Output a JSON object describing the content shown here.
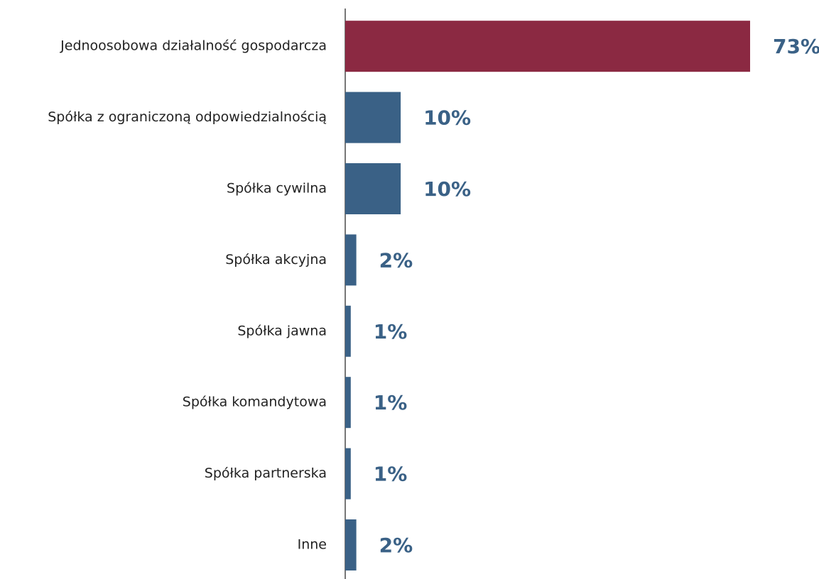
{
  "chart_data": {
    "type": "bar",
    "orientation": "horizontal",
    "categories": [
      "Jednoosobowa działalność gospodarcza",
      "Spółka z ograniczoną odpowiedzialnością",
      "Spółka cywilna",
      "Spółka akcyjna",
      "Spółka jawna",
      "Spółka komandytowa",
      "Spółka partnerska",
      "Inne"
    ],
    "values": [
      73,
      10,
      10,
      2,
      1,
      1,
      1,
      2
    ],
    "value_labels": [
      "73%",
      "10%",
      "10%",
      "2%",
      "1%",
      "1%",
      "1%",
      "2%"
    ],
    "colors": [
      "#8b2942",
      "#3a6186",
      "#3a6186",
      "#3a6186",
      "#3a6186",
      "#3a6186",
      "#3a6186",
      "#3a6186"
    ],
    "label_color": "#3a6186"
  }
}
